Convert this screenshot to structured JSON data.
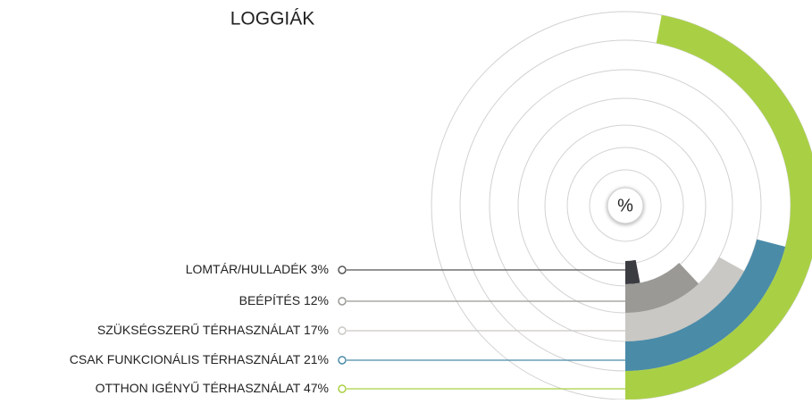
{
  "chart_data": {
    "type": "radial-bar",
    "title": "LOGGIÁK",
    "center_label": "%",
    "categories": [
      "LOMTÁR/HULLADÉK",
      "BEÉPÍTÉS",
      "SZÜKSÉGSZERŰ TÉRHASZNÁLAT",
      "CSAK FUNKCIONÁLIS TÉRHASZNÁLAT",
      "OTTHON IGÉNYŰ TÉRHASZNÁLAT"
    ],
    "values": [
      3,
      12,
      17,
      21,
      47
    ],
    "value_labels": [
      "3%",
      "12%",
      "17%",
      "21%",
      "47%"
    ],
    "colors": [
      "#3b3b42",
      "#9a9995",
      "#c9c8c4",
      "#4a8ba8",
      "#a9d045"
    ]
  }
}
